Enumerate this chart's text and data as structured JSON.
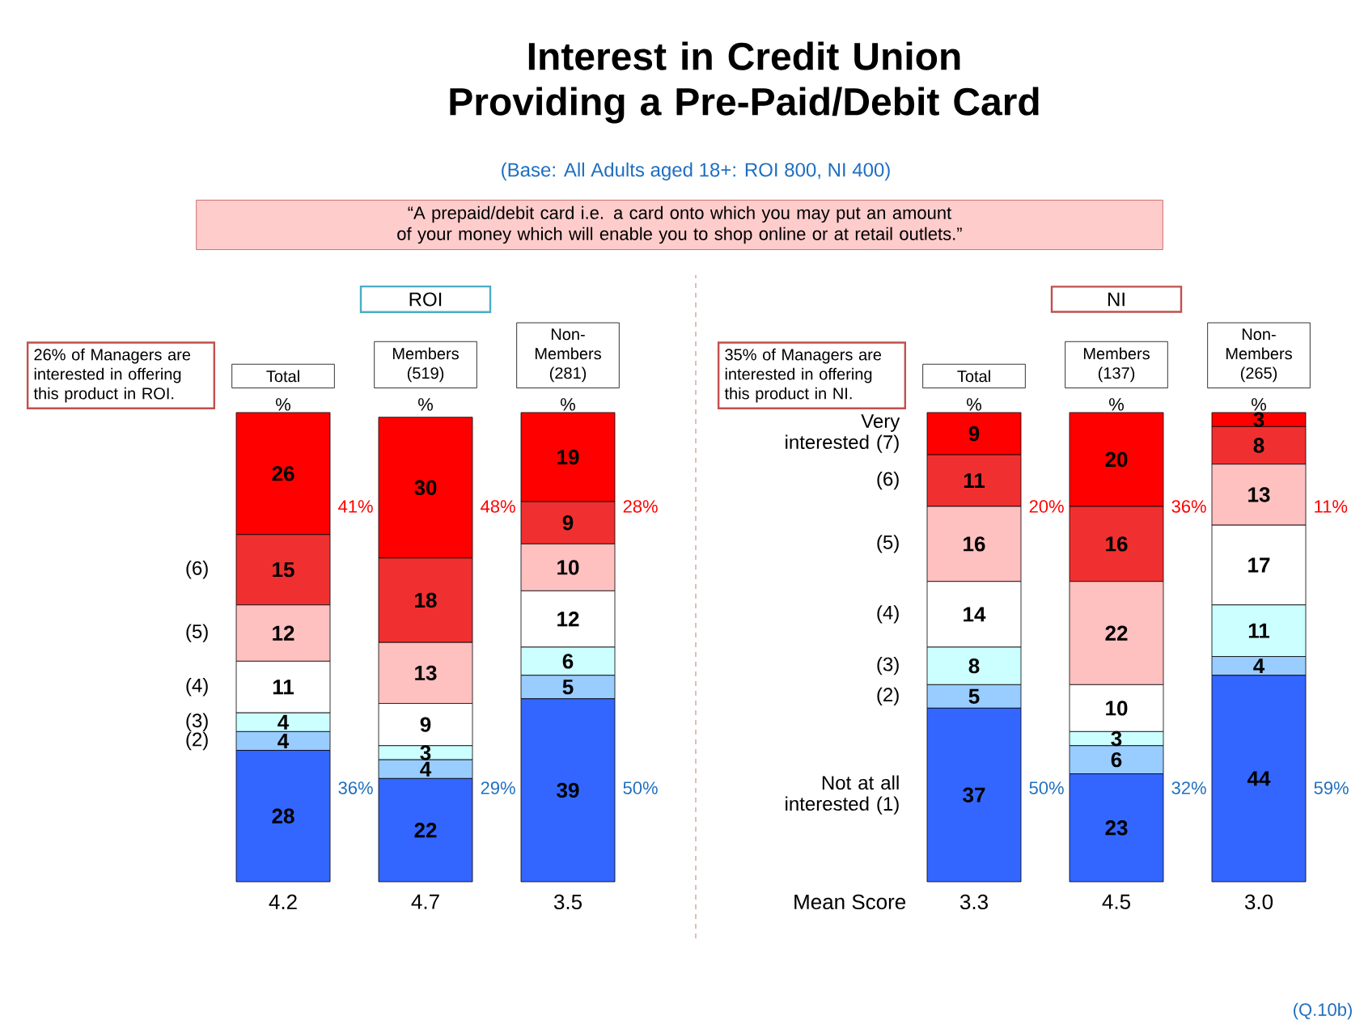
{
  "chart_data": [
    {
      "type": "bar",
      "stacked": true,
      "title": "Interest in Credit Union Providing a Pre-Paid/Debit Card",
      "subtitle": "(Base:  All Adults aged 18+: ROI 800, NI 400)",
      "ylabel": "%",
      "categories": [
        "Total",
        "Members (519)",
        "Non-Members (281)"
      ],
      "ylim": [
        0,
        100
      ],
      "tick_labels": "x",
      "data_labels": true,
      "series": [
        {
          "color": "#3366ff",
          "values": [
            28,
            22,
            39
          ]
        },
        {
          "name": "(2)",
          "color": "#99ccff",
          "values": [
            4,
            4,
            5
          ]
        },
        {
          "name": "(3)",
          "color": "#ccffff",
          "values": [
            4,
            3,
            6
          ]
        },
        {
          "name": "(4)",
          "color": "#ffffff",
          "values": [
            11,
            9,
            12
          ]
        },
        {
          "name": "(5)",
          "color": "#ffc0c0",
          "values": [
            12,
            13,
            10
          ]
        },
        {
          "name": "(6)",
          "color": "#f03030",
          "values": [
            15,
            18,
            9
          ]
        },
        {
          "color": "#ff0000",
          "values": [
            26,
            30,
            19
          ]
        }
      ],
      "annotations": [
        "ROI",
        "26% of Managers are interested in offering this product in ROI.",
        "4.2",
        "4.7",
        "3.5",
        "41%",
        "36%",
        "48%",
        "29%",
        "28%",
        "50%",
        "“A prepaid/debit card i.e. a card onto which you may put an amount of your money which will enable you to shop online or at retail outlets.”",
        "(Q.10b)"
      ]
    },
    {
      "type": "bar",
      "stacked": true,
      "ylabel": "%",
      "categories": [
        "Total",
        "Members (137)",
        "Non-Members (265)"
      ],
      "ylim": [
        0,
        100
      ],
      "tick_labels": "x",
      "data_labels": true,
      "series": [
        {
          "name": "Not at all interested (1)",
          "color": "#3366ff",
          "values": [
            37,
            23,
            44
          ]
        },
        {
          "name": "(2)",
          "color": "#99ccff",
          "values": [
            5,
            6,
            4
          ]
        },
        {
          "name": "(3)",
          "color": "#ccffff",
          "values": [
            8,
            3,
            11
          ]
        },
        {
          "name": "(4)",
          "color": "#ffffff",
          "values": [
            14,
            10,
            17
          ]
        },
        {
          "name": "(5)",
          "color": "#ffc0c0",
          "values": [
            16,
            22,
            13
          ]
        },
        {
          "name": "(6)",
          "color": "#f03030",
          "values": [
            11,
            16,
            8
          ]
        },
        {
          "name": "Very interested (7)",
          "color": "#ff0000",
          "values": [
            9,
            20,
            3
          ]
        }
      ],
      "annotations": [
        "NI",
        "35% of Managers are interested in offering this product in NI.",
        "3.3",
        "4.5",
        "3.0",
        "20%",
        "50%",
        "36%",
        "32%",
        "11%",
        "59%",
        "Mean Score"
      ]
    }
  ]
}
